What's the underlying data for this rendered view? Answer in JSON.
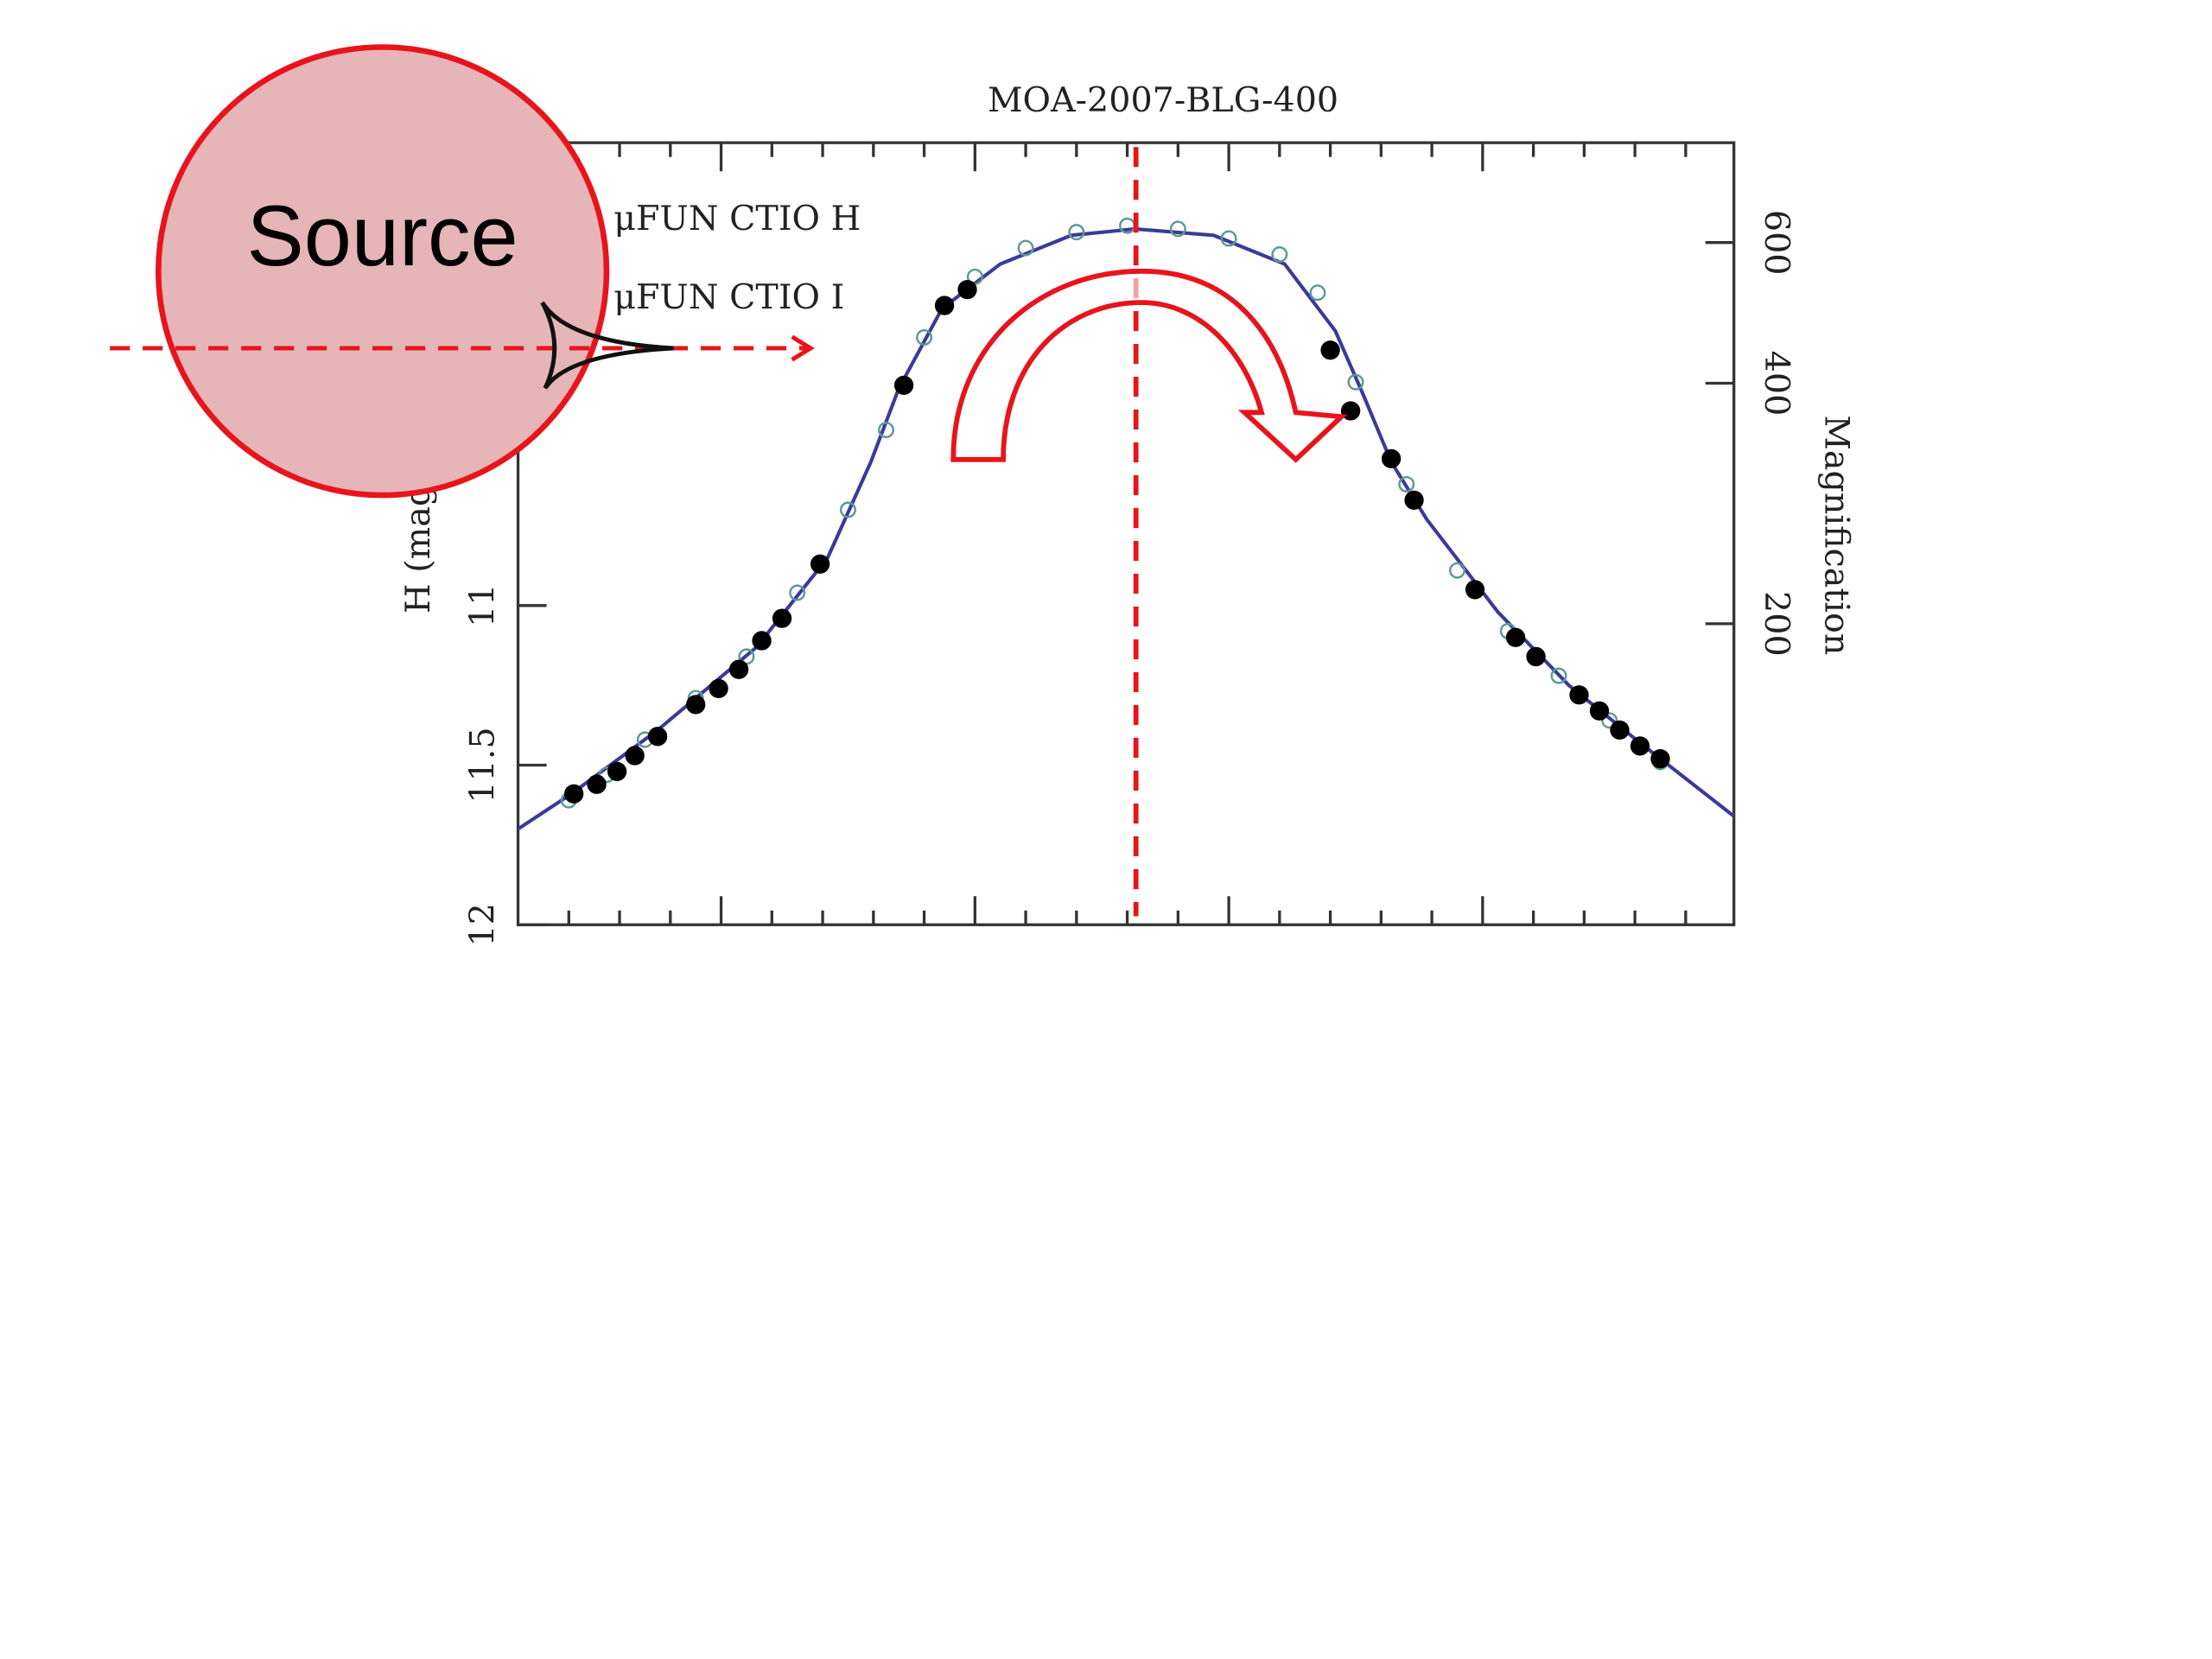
{
  "chart_data": {
    "type": "scatter",
    "title": "MOA-2007-BLG-400",
    "ylabel": "H (mag)",
    "y2label": "Magnification",
    "annotation": "Source",
    "xlim": [
      -0.8,
      3.99
    ],
    "xticks": [
      0,
      1,
      2,
      3
    ],
    "xminor": [
      -0.6,
      -0.4,
      -0.2,
      0.2,
      0.4,
      0.6,
      0.8,
      1.2,
      1.4,
      1.6,
      1.8,
      2.2,
      2.4,
      2.6,
      2.8,
      3.2,
      3.4,
      3.6,
      3.8
    ],
    "ylim": [
      12,
      9.55
    ],
    "yticks": [
      11,
      11.5,
      12
    ],
    "y2lim": [
      84,
      800
    ],
    "y2log": true,
    "y2ticks": [
      200,
      400,
      600
    ],
    "series": [
      {
        "name": "μFUN CTIO H",
        "color": "#5f9896",
        "marker": "open",
        "x": [
          -0.6,
          -0.45,
          -0.3,
          -0.1,
          0.1,
          0.3,
          0.5,
          0.65,
          0.8,
          1.0,
          1.2,
          1.4,
          1.6,
          1.8,
          2.0,
          2.2,
          2.35,
          2.5,
          2.7,
          2.9,
          3.1,
          3.3,
          3.5,
          3.7
        ],
        "values": [
          11.61,
          11.53,
          11.42,
          11.29,
          11.16,
          10.96,
          10.7,
          10.45,
          10.16,
          9.97,
          9.88,
          9.83,
          9.81,
          9.82,
          9.85,
          9.9,
          10.02,
          10.3,
          10.62,
          10.89,
          11.08,
          11.22,
          11.36,
          11.49
        ]
      },
      {
        "name": "μFUN CTIO I",
        "color": "#000000",
        "marker": "filled",
        "x": [
          -0.58,
          -0.49,
          -0.41,
          -0.34,
          -0.25,
          -0.1,
          -0.01,
          0.07,
          0.16,
          0.24,
          0.39,
          0.72,
          0.88,
          0.97,
          2.4,
          2.48,
          2.64,
          2.73,
          2.97,
          3.13,
          3.21,
          3.38,
          3.46,
          3.54,
          3.62,
          3.7
        ],
        "values": [
          11.59,
          11.56,
          11.52,
          11.47,
          11.41,
          11.31,
          11.26,
          11.2,
          11.11,
          11.04,
          10.87,
          10.31,
          10.06,
          10.01,
          10.2,
          10.39,
          10.54,
          10.67,
          10.95,
          11.1,
          11.16,
          11.28,
          11.33,
          11.39,
          11.44,
          11.48
        ]
      }
    ],
    "model": {
      "color": "#3a3a9c",
      "x": [
        -0.8,
        -0.59,
        -0.25,
        0.14,
        0.42,
        0.59,
        0.7,
        0.87,
        1.1,
        1.38,
        1.63,
        1.94,
        2.22,
        2.42,
        2.53,
        2.64,
        2.78,
        3.06,
        3.34,
        3.62,
        3.99
      ],
      "values": [
        11.7,
        11.59,
        11.39,
        11.13,
        10.85,
        10.55,
        10.32,
        10.07,
        9.93,
        9.84,
        9.82,
        9.84,
        9.93,
        10.14,
        10.34,
        10.55,
        10.73,
        11.02,
        11.25,
        11.43,
        11.66
      ]
    }
  }
}
